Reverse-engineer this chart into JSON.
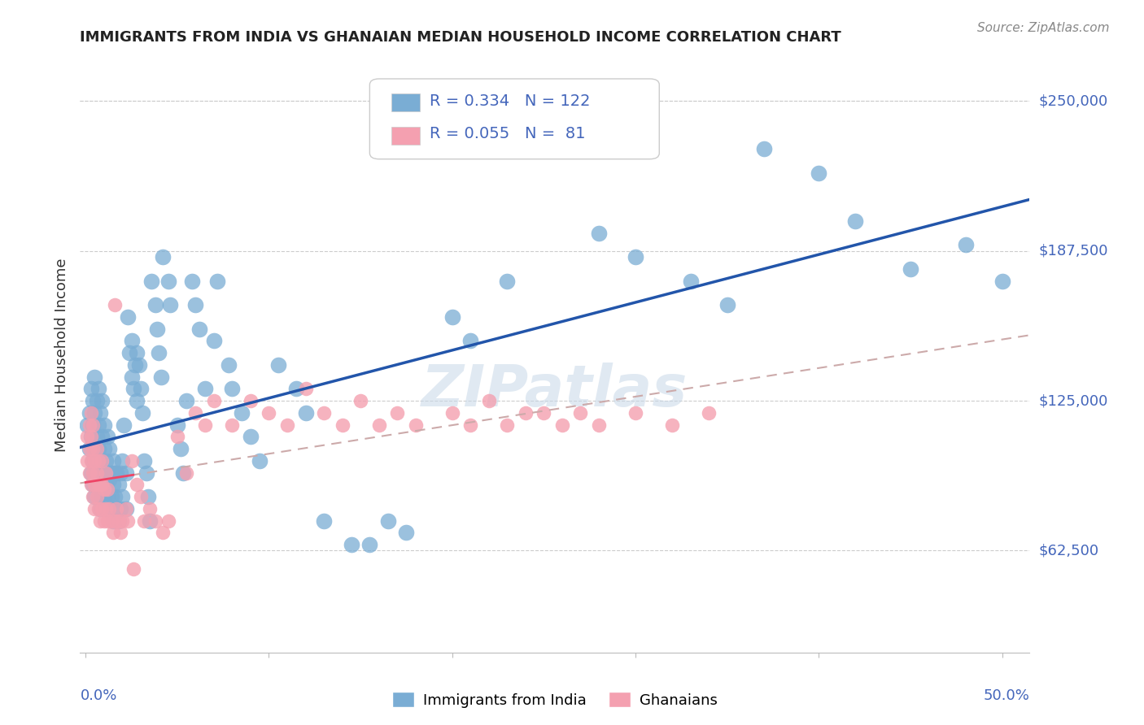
{
  "title": "IMMIGRANTS FROM INDIA VS GHANAIAN MEDIAN HOUSEHOLD INCOME CORRELATION CHART",
  "source": "Source: ZipAtlas.com",
  "ylabel": "Median Household Income",
  "yticks": [
    62500,
    125000,
    187500,
    250000
  ],
  "ytick_labels": [
    "$62,500",
    "$125,000",
    "$187,500",
    "$250,000"
  ],
  "ymin": 20000,
  "ymax": 268000,
  "xmin": -0.003,
  "xmax": 0.515,
  "legend_india_R": "0.334",
  "legend_india_N": "122",
  "legend_ghana_R": "0.055",
  "legend_ghana_N": " 81",
  "india_color": "#7aadd4",
  "ghana_color": "#f4a0b0",
  "india_line_color": "#2255aa",
  "ghana_line_color": "#ee4466",
  "ghana_dashed_color": "#ccaaaa",
  "grid_color": "#cccccc",
  "axis_label_color": "#4466bb",
  "title_color": "#222222",
  "india_scatter_x": [
    0.001,
    0.002,
    0.002,
    0.003,
    0.003,
    0.003,
    0.004,
    0.004,
    0.004,
    0.004,
    0.005,
    0.005,
    0.005,
    0.005,
    0.005,
    0.006,
    0.006,
    0.006,
    0.006,
    0.007,
    0.007,
    0.007,
    0.007,
    0.007,
    0.008,
    0.008,
    0.008,
    0.008,
    0.009,
    0.009,
    0.009,
    0.009,
    0.01,
    0.01,
    0.01,
    0.01,
    0.011,
    0.011,
    0.011,
    0.012,
    0.012,
    0.012,
    0.013,
    0.013,
    0.013,
    0.014,
    0.014,
    0.015,
    0.015,
    0.015,
    0.016,
    0.016,
    0.017,
    0.017,
    0.018,
    0.018,
    0.019,
    0.019,
    0.02,
    0.02,
    0.021,
    0.022,
    0.022,
    0.023,
    0.024,
    0.025,
    0.025,
    0.026,
    0.027,
    0.028,
    0.028,
    0.029,
    0.03,
    0.031,
    0.032,
    0.033,
    0.034,
    0.035,
    0.036,
    0.038,
    0.039,
    0.04,
    0.041,
    0.042,
    0.045,
    0.046,
    0.05,
    0.052,
    0.053,
    0.055,
    0.058,
    0.06,
    0.062,
    0.065,
    0.07,
    0.072,
    0.078,
    0.08,
    0.085,
    0.09,
    0.095,
    0.105,
    0.115,
    0.12,
    0.13,
    0.145,
    0.155,
    0.165,
    0.175,
    0.2,
    0.21,
    0.23,
    0.28,
    0.3,
    0.33,
    0.35,
    0.37,
    0.4,
    0.42,
    0.45,
    0.48,
    0.5
  ],
  "india_scatter_y": [
    115000,
    105000,
    120000,
    95000,
    110000,
    130000,
    90000,
    100000,
    115000,
    125000,
    85000,
    95000,
    105000,
    120000,
    135000,
    90000,
    100000,
    110000,
    125000,
    85000,
    95000,
    105000,
    115000,
    130000,
    80000,
    90000,
    100000,
    120000,
    85000,
    95000,
    110000,
    125000,
    85000,
    95000,
    105000,
    115000,
    80000,
    90000,
    100000,
    85000,
    95000,
    110000,
    80000,
    92000,
    105000,
    85000,
    95000,
    75000,
    90000,
    100000,
    85000,
    95000,
    80000,
    95000,
    75000,
    90000,
    80000,
    95000,
    85000,
    100000,
    115000,
    80000,
    95000,
    160000,
    145000,
    135000,
    150000,
    130000,
    140000,
    125000,
    145000,
    140000,
    130000,
    120000,
    100000,
    95000,
    85000,
    75000,
    175000,
    165000,
    155000,
    145000,
    135000,
    185000,
    175000,
    165000,
    115000,
    105000,
    95000,
    125000,
    175000,
    165000,
    155000,
    130000,
    150000,
    175000,
    140000,
    130000,
    120000,
    110000,
    100000,
    140000,
    130000,
    120000,
    75000,
    65000,
    65000,
    75000,
    70000,
    160000,
    150000,
    175000,
    195000,
    185000,
    175000,
    165000,
    230000,
    220000,
    200000,
    180000,
    190000,
    175000
  ],
  "ghana_scatter_x": [
    0.001,
    0.001,
    0.002,
    0.002,
    0.002,
    0.003,
    0.003,
    0.003,
    0.003,
    0.004,
    0.004,
    0.004,
    0.004,
    0.005,
    0.005,
    0.005,
    0.006,
    0.006,
    0.006,
    0.007,
    0.007,
    0.007,
    0.008,
    0.008,
    0.009,
    0.009,
    0.009,
    0.01,
    0.01,
    0.011,
    0.011,
    0.012,
    0.012,
    0.013,
    0.014,
    0.015,
    0.016,
    0.016,
    0.017,
    0.018,
    0.019,
    0.02,
    0.022,
    0.023,
    0.025,
    0.026,
    0.028,
    0.03,
    0.032,
    0.035,
    0.038,
    0.042,
    0.045,
    0.05,
    0.055,
    0.06,
    0.065,
    0.07,
    0.08,
    0.09,
    0.1,
    0.11,
    0.12,
    0.13,
    0.14,
    0.15,
    0.16,
    0.17,
    0.18,
    0.2,
    0.21,
    0.22,
    0.23,
    0.24,
    0.25,
    0.26,
    0.27,
    0.28,
    0.3,
    0.32,
    0.34
  ],
  "ghana_scatter_y": [
    100000,
    110000,
    95000,
    105000,
    115000,
    90000,
    100000,
    110000,
    120000,
    85000,
    95000,
    105000,
    115000,
    80000,
    90000,
    100000,
    85000,
    95000,
    105000,
    80000,
    90000,
    100000,
    75000,
    90000,
    80000,
    90000,
    100000,
    75000,
    88000,
    80000,
    95000,
    75000,
    88000,
    80000,
    75000,
    70000,
    165000,
    75000,
    80000,
    75000,
    70000,
    75000,
    80000,
    75000,
    100000,
    55000,
    90000,
    85000,
    75000,
    80000,
    75000,
    70000,
    75000,
    110000,
    95000,
    120000,
    115000,
    125000,
    115000,
    125000,
    120000,
    115000,
    130000,
    120000,
    115000,
    125000,
    115000,
    120000,
    115000,
    120000,
    115000,
    125000,
    115000,
    120000,
    120000,
    115000,
    120000,
    115000,
    120000,
    115000,
    120000
  ]
}
